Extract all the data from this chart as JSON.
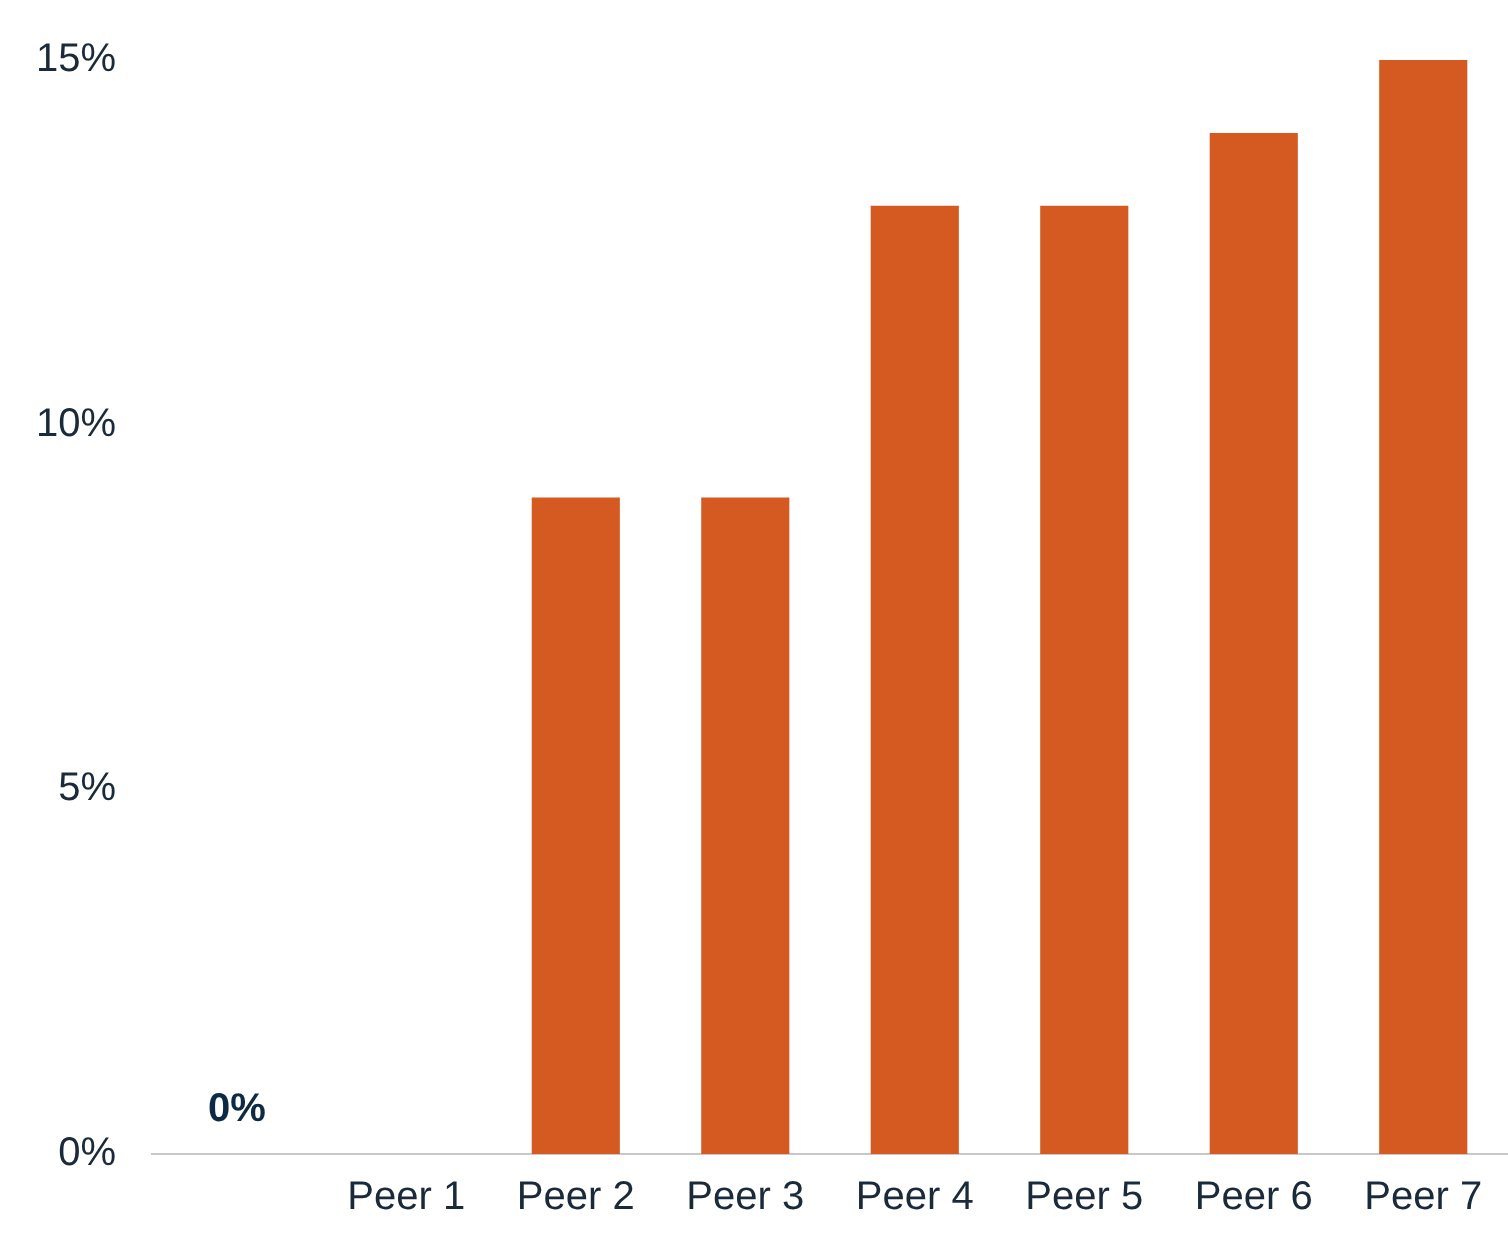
{
  "chart_data": {
    "type": "bar",
    "categories": [
      null,
      "Peer 1",
      "Peer 2",
      "Peer 3",
      "Peer 4",
      "Peer 5",
      "Peer 6",
      "Peer 7"
    ],
    "values": [
      0,
      0,
      9,
      9,
      13,
      13,
      14,
      15
    ],
    "value_labels": [
      "0%",
      null,
      null,
      null,
      null,
      null,
      null,
      null
    ],
    "color": "#d55a21",
    "ylim": [
      0,
      15
    ],
    "yticks": [
      {
        "value": 0,
        "label": "0%"
      },
      {
        "value": 5,
        "label": "5%"
      },
      {
        "value": 10,
        "label": "10%"
      },
      {
        "value": 15,
        "label": "15%"
      }
    ],
    "grid": false,
    "legend": false
  }
}
